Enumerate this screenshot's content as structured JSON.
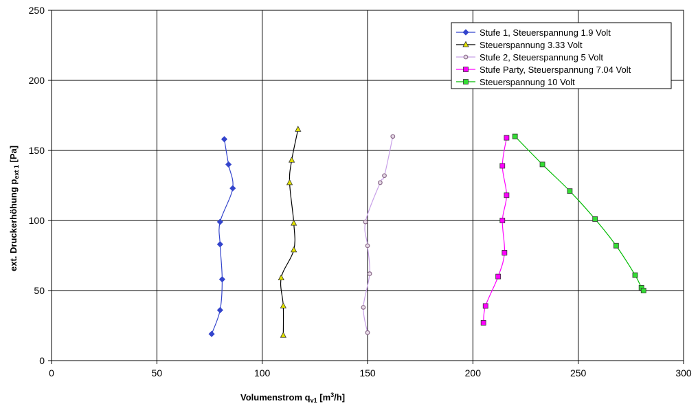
{
  "chart_data": {
    "type": "line",
    "xlabel": {
      "main": "Volumenstrom q",
      "sub": "v1",
      "unit_pre": " [m",
      "sup": "3",
      "unit_post": "/h]"
    },
    "ylabel": {
      "main": "ext. Druckerhöhung p",
      "sub": "ext 1",
      "unit": " [Pa]"
    },
    "xlim": [
      0,
      300
    ],
    "ylim": [
      0,
      250
    ],
    "xticks": [
      "0",
      "50",
      "100",
      "150",
      "200",
      "250",
      "300"
    ],
    "yticks": [
      "0",
      "50",
      "100",
      "150",
      "200",
      "250"
    ],
    "grid": true,
    "legend_position": "top-right",
    "series": [
      {
        "name": "Stufe 1, Steuerspannung 1.9 Volt",
        "color": "#3344cc",
        "marker": "diamond",
        "marker_fill": "#3344cc",
        "points": [
          [
            82,
            158
          ],
          [
            84,
            140
          ],
          [
            86,
            123
          ],
          [
            80,
            99
          ],
          [
            80,
            83
          ],
          [
            81,
            58
          ],
          [
            80,
            36
          ],
          [
            76,
            19
          ]
        ]
      },
      {
        "name": "Steuerspannung 3.33 Volt",
        "color": "#000000",
        "marker": "triangle",
        "marker_fill": "#e6e600",
        "points": [
          [
            117,
            165
          ],
          [
            114,
            143
          ],
          [
            113,
            127
          ],
          [
            115,
            98
          ],
          [
            115,
            79
          ],
          [
            109,
            59
          ],
          [
            110,
            39
          ],
          [
            110,
            18
          ]
        ]
      },
      {
        "name": "Stufe 2, Steuerspannung 5 Volt",
        "color": "#c8a0e8",
        "marker": "circle",
        "marker_fill": "#8a6a8a",
        "points": [
          [
            162,
            160
          ],
          [
            158,
            132
          ],
          [
            156,
            127
          ],
          [
            149,
            99
          ],
          [
            150,
            82
          ],
          [
            151,
            62
          ],
          [
            148,
            38
          ],
          [
            150,
            20
          ]
        ]
      },
      {
        "name": "Stufe Party, Steuerspannung 7.04 Volt",
        "color": "#ff00ff",
        "marker": "square",
        "marker_fill": "#ff00ff",
        "points": [
          [
            216,
            159
          ],
          [
            214,
            139
          ],
          [
            216,
            118
          ],
          [
            214,
            100
          ],
          [
            215,
            77
          ],
          [
            212,
            60
          ],
          [
            206,
            39
          ],
          [
            205,
            27
          ]
        ]
      },
      {
        "name": "Steuerspannung 10 Volt",
        "color": "#00bb00",
        "marker": "square",
        "marker_fill": "#33dd33",
        "points": [
          [
            220,
            160
          ],
          [
            233,
            140
          ],
          [
            246,
            121
          ],
          [
            258,
            101
          ],
          [
            268,
            82
          ],
          [
            277,
            61
          ],
          [
            280,
            52
          ],
          [
            281,
            50
          ]
        ]
      }
    ]
  }
}
